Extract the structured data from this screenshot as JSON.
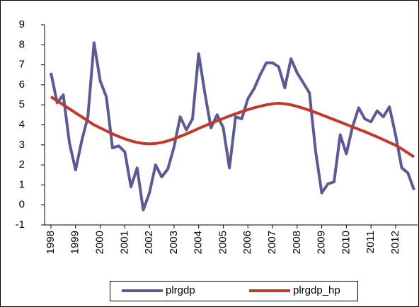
{
  "chart_data": {
    "type": "line",
    "categories": [
      "1998",
      null,
      null,
      null,
      "1999",
      null,
      null,
      null,
      "2000",
      null,
      null,
      null,
      "2001",
      null,
      null,
      null,
      "2002",
      null,
      null,
      null,
      "2003",
      null,
      null,
      null,
      "2004",
      null,
      null,
      null,
      "2005",
      null,
      null,
      null,
      "2006",
      null,
      null,
      null,
      "2007",
      null,
      null,
      null,
      "2008",
      null,
      null,
      null,
      "2009",
      null,
      null,
      null,
      "2010",
      null,
      null,
      null,
      "2011",
      null,
      null,
      null,
      "2012",
      null,
      null,
      null
    ],
    "series": [
      {
        "name": "plrgdp",
        "color": "#5a5a96",
        "values": [
          6.6,
          5.1,
          5.5,
          3.1,
          1.75,
          3.2,
          4.4,
          8.1,
          6.2,
          5.4,
          2.85,
          2.95,
          2.65,
          0.9,
          1.85,
          -0.25,
          0.6,
          2.0,
          1.4,
          1.8,
          2.9,
          4.4,
          3.75,
          4.3,
          7.55,
          5.6,
          3.85,
          4.5,
          3.85,
          1.85,
          4.4,
          4.3,
          5.3,
          5.8,
          6.5,
          7.1,
          7.1,
          6.9,
          5.85,
          7.3,
          6.6,
          6.1,
          5.6,
          2.7,
          0.6,
          1.05,
          1.15,
          3.5,
          2.55,
          3.9,
          4.85,
          4.3,
          4.15,
          4.7,
          4.4,
          4.9,
          3.5,
          1.85,
          1.6,
          0.75
        ]
      },
      {
        "name": "plrgdp_hp",
        "color": "#c0392b",
        "values": [
          5.4,
          5.2,
          5.0,
          4.8,
          4.6,
          4.4,
          4.2,
          4.0,
          3.85,
          3.7,
          3.55,
          3.42,
          3.3,
          3.2,
          3.12,
          3.07,
          3.05,
          3.07,
          3.12,
          3.2,
          3.3,
          3.42,
          3.55,
          3.68,
          3.82,
          3.95,
          4.08,
          4.2,
          4.32,
          4.44,
          4.55,
          4.66,
          4.76,
          4.85,
          4.93,
          5.0,
          5.05,
          5.08,
          5.05,
          5.0,
          4.92,
          4.83,
          4.73,
          4.62,
          4.5,
          4.38,
          4.26,
          4.14,
          4.02,
          3.9,
          3.78,
          3.66,
          3.53,
          3.4,
          3.26,
          3.12,
          2.98,
          2.8,
          2.6,
          2.4
        ]
      }
    ],
    "ylim": [
      -1,
      9
    ],
    "yticks": [
      -1,
      0,
      1,
      2,
      3,
      4,
      5,
      6,
      7,
      8,
      9
    ],
    "grid": false,
    "legend": "bottom"
  }
}
